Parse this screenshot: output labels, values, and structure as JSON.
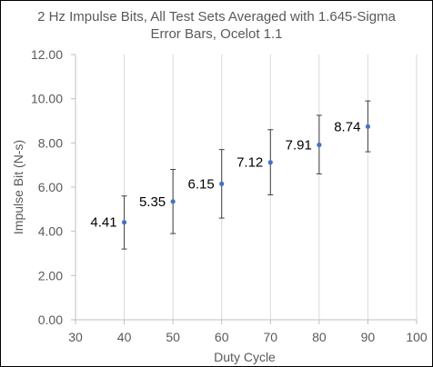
{
  "chart_data": {
    "type": "scatter",
    "title_lines": [
      "2 Hz Impulse Bits, All Test Sets Averaged with 1.645-Sigma",
      "Error Bars, Ocelot 1.1"
    ],
    "xlabel": "Duty Cycle",
    "ylabel": "Impulse Bit (N-s)",
    "xlim": [
      30,
      100
    ],
    "ylim": [
      0,
      12
    ],
    "x_ticks": [
      "30",
      "40",
      "50",
      "60",
      "70",
      "80",
      "90",
      "100"
    ],
    "y_ticks": [
      "0.00",
      "2.00",
      "4.00",
      "6.00",
      "8.00",
      "10.00",
      "12.00"
    ],
    "grid": "vertical",
    "series": [
      {
        "color": "#4472C4",
        "points": [
          {
            "x": 40,
            "y": 4.41,
            "label": "4.41",
            "err_low": 3.2,
            "err_high": 5.6
          },
          {
            "x": 50,
            "y": 5.35,
            "label": "5.35",
            "err_low": 3.9,
            "err_high": 6.8
          },
          {
            "x": 60,
            "y": 6.15,
            "label": "6.15",
            "err_low": 4.6,
            "err_high": 7.7
          },
          {
            "x": 70,
            "y": 7.12,
            "label": "7.12",
            "err_low": 5.65,
            "err_high": 8.6
          },
          {
            "x": 80,
            "y": 7.91,
            "label": "7.91",
            "err_low": 6.6,
            "err_high": 9.25
          },
          {
            "x": 90,
            "y": 8.74,
            "label": "8.74",
            "err_low": 7.6,
            "err_high": 9.9
          }
        ]
      }
    ],
    "error_bar_color": "#404040",
    "grid_color": "#D9D9D9"
  }
}
